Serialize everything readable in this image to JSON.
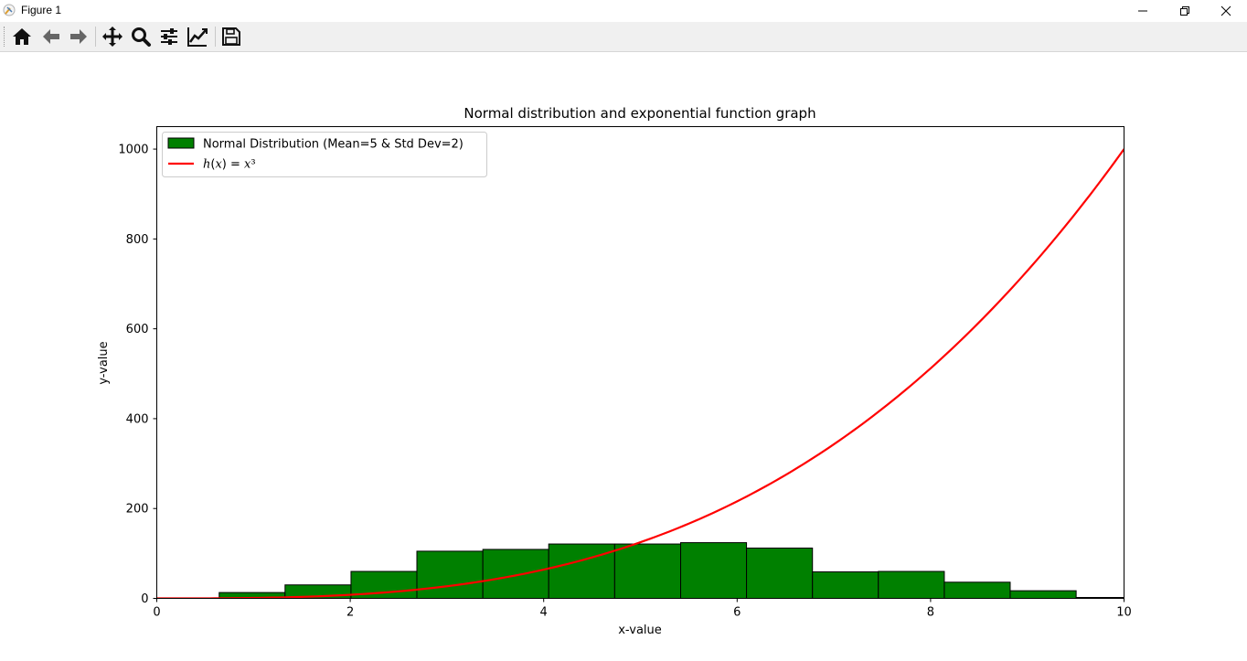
{
  "window": {
    "title": "Figure 1",
    "controls": {
      "minimize": "minimize-icon",
      "restore": "restore-icon",
      "close": "close-icon"
    }
  },
  "toolbar": {
    "buttons": [
      {
        "name": "home-button",
        "icon": "home-icon"
      },
      {
        "name": "back-button",
        "icon": "arrow-left-icon"
      },
      {
        "name": "forward-button",
        "icon": "arrow-right-icon"
      },
      {
        "name": "pan-button",
        "icon": "move-icon"
      },
      {
        "name": "zoom-button",
        "icon": "zoom-icon"
      },
      {
        "name": "subplots-button",
        "icon": "sliders-icon"
      },
      {
        "name": "edit-axes-button",
        "icon": "line-chart-icon"
      },
      {
        "name": "save-button",
        "icon": "save-icon"
      }
    ]
  },
  "chart_data": {
    "type": "bar",
    "title": "Normal distribution and exponential function graph",
    "xlabel": "x-value",
    "ylabel": "y-value",
    "xlim": [
      0,
      10
    ],
    "ylim": [
      0,
      1050
    ],
    "xticks": [
      0,
      2,
      4,
      6,
      8,
      10
    ],
    "yticks": [
      0,
      200,
      400,
      600,
      800,
      1000
    ],
    "grid": false,
    "legend_position": "upper-left",
    "histogram": {
      "name": "Normal Distribution (Mean=5 & Std Dev=2)",
      "color": "#008000",
      "edge_color": "#000000",
      "bin_edges": [
        -0.037,
        0.645,
        1.326,
        2.008,
        2.689,
        3.371,
        4.052,
        4.734,
        5.416,
        6.097,
        6.779,
        7.46,
        8.142,
        8.823,
        9.505,
        10.186
      ],
      "counts": [
        1,
        13,
        30,
        60,
        105,
        109,
        121,
        121,
        124,
        112,
        59,
        60,
        36,
        17,
        2
      ]
    },
    "curve": {
      "name": "h(x) = x³",
      "legend_math": {
        "func": "h",
        "var": "x",
        "exp": "³"
      },
      "color": "#ff0000",
      "function": "x^3",
      "x_range": [
        0,
        10
      ]
    }
  }
}
